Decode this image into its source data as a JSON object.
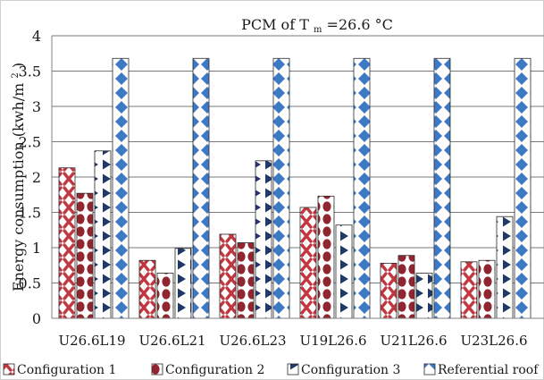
{
  "chart_data": {
    "type": "bar",
    "title_prefix": "PCM of T",
    "title_subscript": "m",
    "title_suffix": "=26.6 °C",
    "ylabel_main": "Energy consumption (kwh/m",
    "ylabel_sup": "2",
    "ylabel_end": ")",
    "xlabel": "",
    "ylim": [
      0,
      4
    ],
    "yticks": [
      "0",
      "0.5",
      "1",
      "1.5",
      "2",
      "2.5",
      "3",
      "3.5",
      "4"
    ],
    "grid": true,
    "legend_position": "bottom",
    "categories": [
      "U26.6L19",
      "U26.6L21",
      "U26.6L23",
      "U19L26.6",
      "U21L26.6",
      "U23L26.6"
    ],
    "series": [
      {
        "name": "Configuration 1",
        "color": "#c0373f",
        "pattern": "cross",
        "values": [
          2.13,
          0.82,
          1.19,
          1.57,
          0.78,
          0.8
        ]
      },
      {
        "name": "Configuration 2",
        "color": "#9b2730",
        "pattern": "dot",
        "values": [
          1.77,
          0.64,
          1.07,
          1.73,
          0.89,
          0.82
        ]
      },
      {
        "name": "Configuration 3",
        "color": "#1f3a66",
        "pattern": "triangle",
        "values": [
          2.37,
          0.99,
          2.23,
          1.32,
          0.64,
          1.44
        ]
      },
      {
        "name": "Referential roof",
        "color": "#3d79c4",
        "pattern": "diamond",
        "values": [
          3.68,
          3.68,
          3.68,
          3.68,
          3.68,
          3.68
        ]
      }
    ]
  }
}
